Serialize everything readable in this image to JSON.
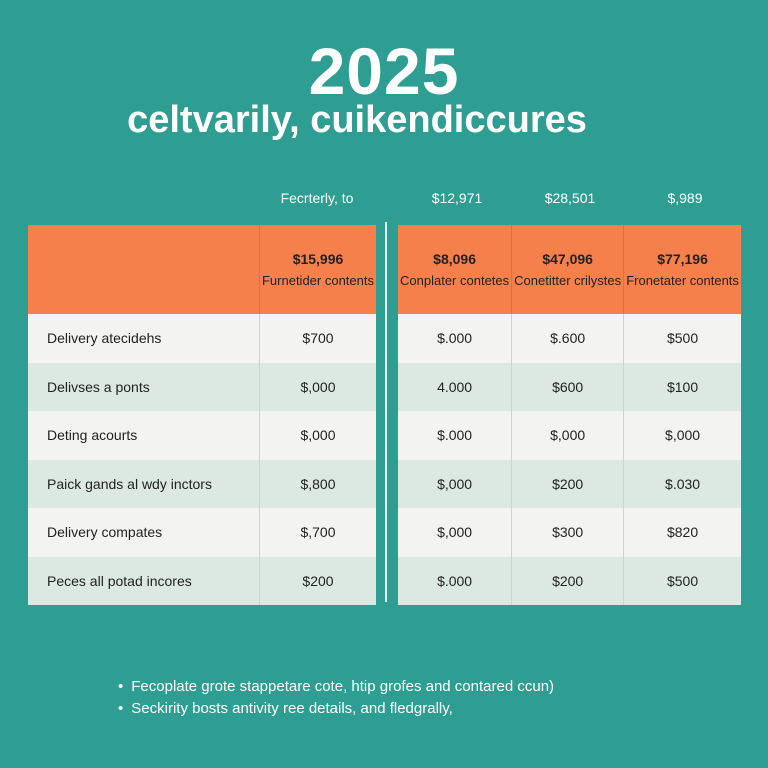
{
  "header": {
    "year": "2025",
    "subtitle": "celtvarily, cuikendiccures"
  },
  "column_headers": [
    "Fecrterly, to",
    "$12,971",
    "$28,501",
    "$,989"
  ],
  "left_table": {
    "top": {
      "amount": "$15,996",
      "label": "Furnetider contents"
    },
    "rows": [
      {
        "label": "Delivery atecidehs",
        "value": "$700"
      },
      {
        "label": "Delivses a ponts",
        "value": "$,000"
      },
      {
        "label": "Deting acourts",
        "value": "$,000"
      },
      {
        "label": "Paick gands al wdy inctors",
        "value": "$,800"
      },
      {
        "label": "Delivery compates",
        "value": "$,700"
      },
      {
        "label": "Peces all potad incores",
        "value": "$200"
      }
    ]
  },
  "right_table": {
    "top": [
      {
        "amount": "$8,096",
        "label": "Conplater contetes"
      },
      {
        "amount": "$47,096",
        "label": "Conetitter crilystes"
      },
      {
        "amount": "$77,196",
        "label": "Fronetater contents"
      }
    ],
    "rows": [
      [
        "$.000",
        "$.600",
        "$500"
      ],
      [
        "4.000",
        "$600",
        "$100"
      ],
      [
        "$.000",
        "$,000",
        "$,000"
      ],
      [
        "$,000",
        "$200",
        "$.030"
      ],
      [
        "$,000",
        "$300",
        "$820"
      ],
      [
        "$.000",
        "$200",
        "$500"
      ]
    ]
  },
  "bullets": [
    "Fecoplate grote stappetare cote, htip grofes and contared ccun)",
    "Seckirity bosts antivity ree details, and fledgrally,"
  ],
  "colors": {
    "background": "#2e9e93",
    "accent_orange": "#f5804c"
  }
}
